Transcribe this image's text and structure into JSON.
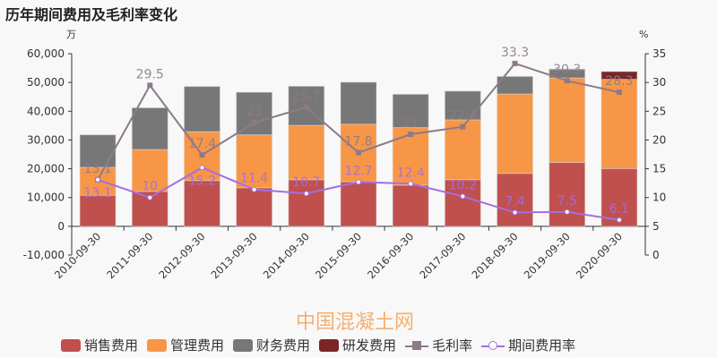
{
  "title": "历年期间费用及毛利率变化",
  "watermark": "中国混凝土网",
  "chart_data": {
    "type": "bar",
    "stacked": true,
    "categories": [
      "2010-09-30",
      "2011-09-30",
      "2012-09-30",
      "2013-09-30",
      "2014-09-30",
      "2015-09-30",
      "2016-09-30",
      "2017-09-30",
      "2018-09-30",
      "2019-09-30",
      "2020-09-30"
    ],
    "left_axis": {
      "unit": "万",
      "ylim": [
        -10000,
        60000
      ],
      "ticks": [
        "-10,000",
        "0",
        "10,000",
        "20,000",
        "30,000",
        "40,000",
        "50,000",
        "60,000"
      ]
    },
    "right_axis": {
      "unit": "%",
      "ylim": [
        0,
        35
      ],
      "ticks": [
        "0",
        "5",
        "10",
        "15",
        "20",
        "25",
        "30",
        "35"
      ]
    },
    "series": [
      {
        "name": "销售费用",
        "kind": "bar",
        "color": "#c0504d",
        "values": [
          10800,
          12100,
          15900,
          13400,
          16200,
          15500,
          14300,
          16200,
          18400,
          22200,
          20100
        ]
      },
      {
        "name": "管理费用",
        "kind": "bar",
        "color": "#f79646",
        "values": [
          9700,
          14600,
          17000,
          18400,
          18900,
          20000,
          20000,
          20800,
          27600,
          29400,
          31000
        ]
      },
      {
        "name": "财务费用",
        "kind": "bar",
        "color": "#777777",
        "values": [
          11300,
          14500,
          15700,
          14800,
          13600,
          14600,
          11600,
          10000,
          6100,
          2900,
          0
        ]
      },
      {
        "name": "研发费用",
        "kind": "bar",
        "color": "#7b2626",
        "values": [
          0,
          0,
          0,
          0,
          0,
          0,
          0,
          0,
          0,
          200,
          2700
        ]
      },
      {
        "name": "毛利率",
        "kind": "line",
        "axis": "right",
        "color": "#8c7a8a",
        "values": [
          13.1,
          29.5,
          17.4,
          23,
          25.7,
          17.8,
          21,
          22.3,
          33.3,
          30.3,
          28.3
        ],
        "labels": [
          "13.1",
          "29.5",
          "17.4",
          "23",
          "25.7",
          "17.8",
          "21",
          "22.3",
          "33.3",
          "30.3",
          "28.3"
        ]
      },
      {
        "name": "期间费用率",
        "kind": "line",
        "axis": "right",
        "color": "#a56de2",
        "values": [
          13.1,
          10,
          15.2,
          11.4,
          10.7,
          12.7,
          12.4,
          10.2,
          7.4,
          7.5,
          6.1
        ],
        "labels": [
          "13.1",
          "10",
          "15.2",
          "11.4",
          "10.7",
          "12.7",
          "12.4",
          "10.2",
          "7.4",
          "7.5",
          "6.1"
        ]
      }
    ],
    "legend": "bottom",
    "grid": false
  }
}
